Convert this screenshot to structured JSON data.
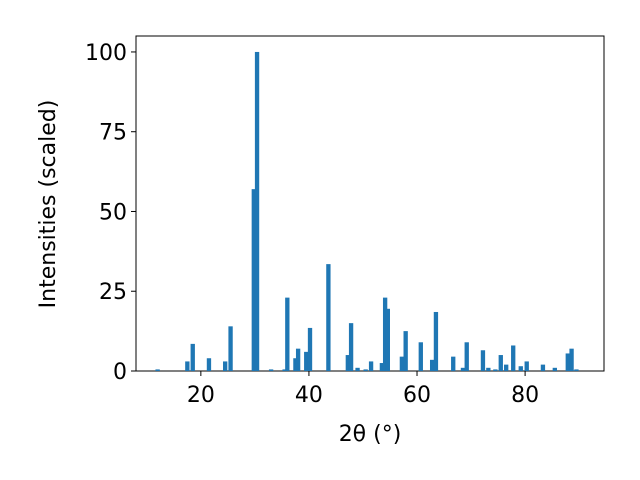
{
  "chart_data": {
    "type": "bar",
    "x_label": "2θ (°)",
    "y_label": "Intensities (scaled)",
    "color": "#1f77b4",
    "bar_width": 0.8,
    "x": [
      12,
      17.5,
      18.5,
      21.5,
      24.5,
      25.5,
      29.8,
      30.4,
      33,
      35.5,
      36,
      37.5,
      38,
      39.5,
      40.2,
      43.6,
      47.2,
      47.8,
      49,
      50.5,
      51.5,
      53.5,
      54.1,
      54.6,
      57.2,
      57.9,
      60.7,
      62.8,
      63.5,
      66.7,
      68.5,
      69.2,
      72.2,
      73.2,
      74.5,
      75.5,
      76.5,
      77.8,
      79.2,
      80.3,
      83.3,
      85.5,
      87.9,
      88.6,
      89.5
    ],
    "values": [
      0.5,
      3,
      8.5,
      4,
      3,
      14,
      57,
      100,
      0.5,
      0.5,
      23,
      4,
      7,
      6,
      13.5,
      33.5,
      5,
      15,
      1,
      0.5,
      3,
      2.5,
      23,
      19.5,
      4.5,
      12.5,
      9,
      3.5,
      18.5,
      4.5,
      1,
      9,
      6.5,
      1,
      0.5,
      5,
      2,
      8,
      1.5,
      3,
      2,
      1,
      5.5,
      7,
      0.5
    ],
    "xlim": [
      8,
      94.6
    ],
    "ylim": [
      0,
      105
    ],
    "xticks": [
      20,
      40,
      60,
      80
    ],
    "yticks": [
      0,
      25,
      50,
      75,
      100
    ]
  }
}
